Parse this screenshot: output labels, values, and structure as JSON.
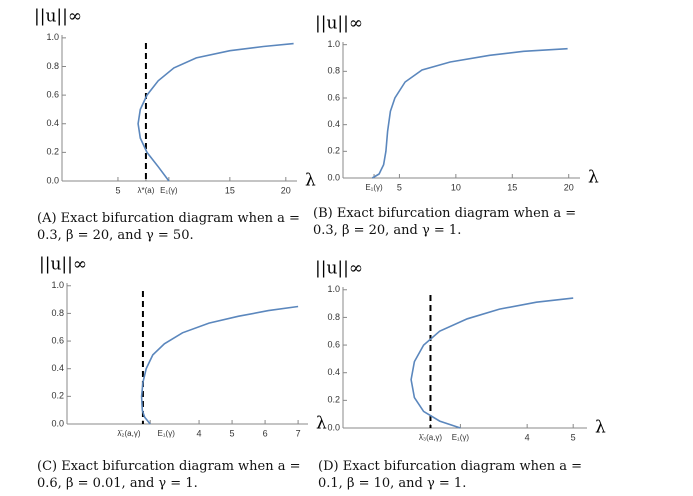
{
  "chart_data": [
    {
      "type": "line",
      "caption": "(A) Exact bifurcation diagram when a = 0.3, β = 20, and γ = 50.",
      "ylabel": "||u||∞",
      "xlabel": "λ",
      "xlim": [
        0,
        21
      ],
      "ylim": [
        0,
        1.02
      ],
      "xticks": [
        5,
        {
          "value": 7.5,
          "label": "λ*(a)"
        },
        {
          "value": 9.55,
          "label": "E₁(γ)"
        },
        15,
        20
      ],
      "yticks": [
        {
          "value": 0,
          "label": "0.0"
        },
        0.2,
        0.4,
        0.6,
        0.8,
        {
          "value": 1,
          "label": "1.0"
        }
      ],
      "x": [
        9.55,
        8.6,
        7.6,
        7.0,
        6.8,
        7.0,
        7.6,
        8.6,
        10,
        12,
        15,
        18,
        20.7
      ],
      "values": [
        0,
        0.1,
        0.2,
        0.3,
        0.4,
        0.5,
        0.6,
        0.7,
        0.79,
        0.86,
        0.91,
        0.94,
        0.96
      ],
      "color": "#5b87bd",
      "dashed_x": 7.5
    },
    {
      "type": "line",
      "caption": "(B) Exact bifurcation diagram when a = 0.3, β = 20, and γ = 1.",
      "ylabel": "||u||∞",
      "xlabel": "λ",
      "xlim": [
        0,
        21
      ],
      "ylim": [
        0,
        1.02
      ],
      "xticks": [
        {
          "value": 2.75,
          "label": "E₁(γ)"
        },
        5,
        10,
        15,
        20
      ],
      "yticks": [
        {
          "value": 0,
          "label": "0.0"
        },
        0.2,
        0.4,
        0.6,
        0.8,
        {
          "value": 1,
          "label": "1.0"
        }
      ],
      "x": [
        2.6,
        3.2,
        3.6,
        3.8,
        3.95,
        4.2,
        4.6,
        5.5,
        7,
        9.5,
        13,
        16,
        19.9
      ],
      "values": [
        0,
        0.03,
        0.1,
        0.2,
        0.35,
        0.5,
        0.6,
        0.72,
        0.81,
        0.87,
        0.92,
        0.95,
        0.97
      ],
      "color": "#5b87bd"
    },
    {
      "type": "line",
      "caption": "(C) Exact bifurcation diagram when a = 0.6, β = 0.01, and γ = 1.",
      "ylabel": "||u||∞",
      "xlabel": "λ",
      "xlim": [
        0,
        7.3
      ],
      "ylim": [
        0,
        1.02
      ],
      "xticks": [
        {
          "value": 2.3,
          "label": "λ̄₂(a,γ)"
        },
        {
          "value": 2.52,
          "label": "E₁(γ)"
        },
        4,
        5,
        6,
        7
      ],
      "yticks": [
        {
          "value": 0,
          "label": "0.0"
        },
        0.2,
        0.4,
        0.6,
        0.8,
        {
          "value": 1,
          "label": "1.0"
        }
      ],
      "x": [
        2.52,
        2.35,
        2.28,
        2.26,
        2.3,
        2.4,
        2.6,
        2.95,
        3.5,
        4.3,
        5.2,
        6.1,
        7
      ],
      "values": [
        0,
        0.05,
        0.1,
        0.2,
        0.3,
        0.4,
        0.5,
        0.58,
        0.66,
        0.73,
        0.78,
        0.82,
        0.85
      ],
      "color": "#5b87bd",
      "dashed_x": 2.3
    },
    {
      "type": "line",
      "caption": "(D) Exact bifurcation diagram when a = 0.1, β = 10, and γ = 1.",
      "ylabel": "||u||∞",
      "xlabel": "λ",
      "xlim": [
        0,
        5.3
      ],
      "ylim": [
        0,
        1.02
      ],
      "xticks": [
        {
          "value": 1.9,
          "label": "λ̄₃(a,γ)"
        },
        {
          "value": 2.55,
          "label": "E₁(γ)"
        },
        4,
        5
      ],
      "yticks": [
        {
          "value": 0,
          "label": "0.0"
        },
        0.2,
        0.4,
        0.6,
        0.8,
        {
          "value": 1,
          "label": "1.0"
        }
      ],
      "x": [
        2.55,
        2.1,
        1.75,
        1.55,
        1.48,
        1.55,
        1.75,
        2.1,
        2.7,
        3.4,
        4.2,
        5
      ],
      "values": [
        0,
        0.05,
        0.12,
        0.22,
        0.35,
        0.48,
        0.6,
        0.7,
        0.79,
        0.86,
        0.91,
        0.94
      ],
      "color": "#5b87bd",
      "dashed_x": 1.9
    }
  ]
}
